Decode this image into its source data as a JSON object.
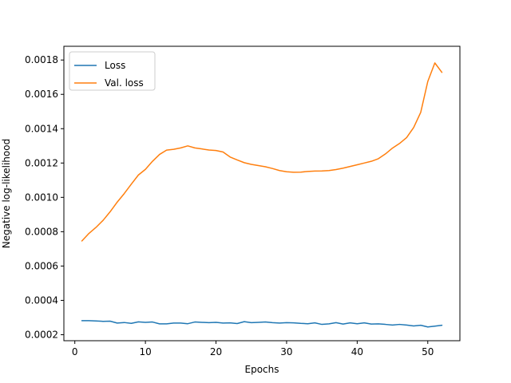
{
  "chart_data": {
    "type": "line",
    "title": "",
    "xlabel": "Epochs",
    "ylabel": "Negative log-likelihood",
    "xlim": [
      -1.55,
      54.55
    ],
    "ylim": [
      0.000165,
      0.00188
    ],
    "xticks": [
      0,
      10,
      20,
      30,
      40,
      50
    ],
    "xtick_labels": [
      "0",
      "10",
      "20",
      "30",
      "40",
      "50"
    ],
    "yticks": [
      0.0002,
      0.0004,
      0.0006,
      0.0008,
      0.001,
      0.0012,
      0.0014,
      0.0016,
      0.0018
    ],
    "ytick_labels": [
      "0.0002",
      "0.0004",
      "0.0006",
      "0.0008",
      "0.0010",
      "0.0012",
      "0.0014",
      "0.0016",
      "0.0018"
    ],
    "grid": false,
    "legend_position": "top-left",
    "x": [
      1,
      2,
      3,
      4,
      5,
      6,
      7,
      8,
      9,
      10,
      11,
      12,
      13,
      14,
      15,
      16,
      17,
      18,
      19,
      20,
      21,
      22,
      23,
      24,
      25,
      26,
      27,
      28,
      29,
      30,
      31,
      32,
      33,
      34,
      35,
      36,
      37,
      38,
      39,
      40,
      41,
      42,
      43,
      44,
      45,
      46,
      47,
      48,
      49,
      50,
      51,
      52
    ],
    "series": [
      {
        "name": "Loss",
        "color": "#1f77b4",
        "values": [
          0.000282,
          0.000282,
          0.00028,
          0.000278,
          0.000279,
          0.000268,
          0.000271,
          0.000266,
          0.000275,
          0.000272,
          0.000274,
          0.000263,
          0.000263,
          0.000268,
          0.000268,
          0.000264,
          0.000274,
          0.000272,
          0.00027,
          0.000272,
          0.000268,
          0.000269,
          0.000265,
          0.000276,
          0.00027,
          0.000272,
          0.000274,
          0.00027,
          0.000268,
          0.00027,
          0.000269,
          0.000266,
          0.000264,
          0.000269,
          0.00026,
          0.000263,
          0.00027,
          0.000262,
          0.000269,
          0.000264,
          0.000269,
          0.000262,
          0.000263,
          0.00026,
          0.000256,
          0.00026,
          0.000256,
          0.000251,
          0.000255,
          0.000245,
          0.00025,
          0.000255
        ]
      },
      {
        "name": "Val. loss",
        "color": "#ff7f0e",
        "values": [
          0.000746,
          0.00079,
          0.000825,
          0.000866,
          0.000916,
          0.000972,
          0.001022,
          0.001077,
          0.00113,
          0.001163,
          0.00121,
          0.00125,
          0.001275,
          0.00128,
          0.001288,
          0.0013,
          0.001288,
          0.001282,
          0.001276,
          0.001273,
          0.001264,
          0.001235,
          0.001218,
          0.001202,
          0.001192,
          0.001185,
          0.001178,
          0.001168,
          0.001156,
          0.001149,
          0.001146,
          0.001147,
          0.001151,
          0.001153,
          0.001154,
          0.001156,
          0.001162,
          0.00117,
          0.00118,
          0.00119,
          0.0012,
          0.00121,
          0.001225,
          0.001253,
          0.001287,
          0.001314,
          0.001348,
          0.001407,
          0.001495,
          0.001675,
          0.001783,
          0.001728
        ]
      }
    ]
  }
}
